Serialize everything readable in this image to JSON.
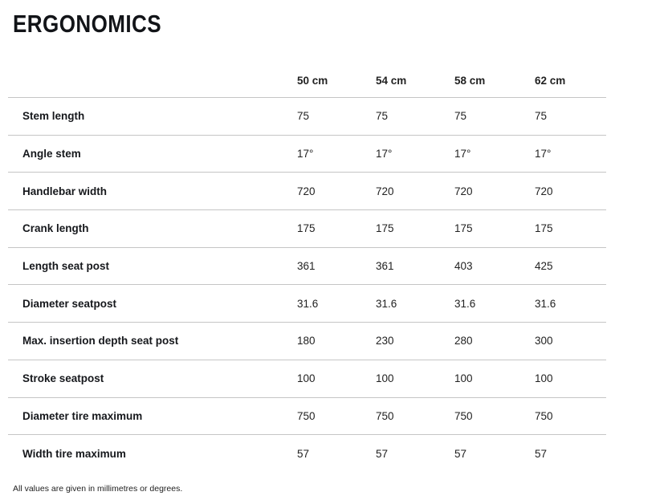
{
  "title": "ERGONOMICS",
  "table": {
    "columns": [
      "50 cm",
      "54 cm",
      "58 cm",
      "62 cm"
    ],
    "rows": [
      {
        "label": "Stem length",
        "values": [
          "75",
          "75",
          "75",
          "75"
        ]
      },
      {
        "label": "Angle stem",
        "values": [
          "17°",
          "17°",
          "17°",
          "17°"
        ]
      },
      {
        "label": "Handlebar width",
        "values": [
          "720",
          "720",
          "720",
          "720"
        ]
      },
      {
        "label": "Crank length",
        "values": [
          "175",
          "175",
          "175",
          "175"
        ]
      },
      {
        "label": "Length seat post",
        "values": [
          "361",
          "361",
          "403",
          "425"
        ]
      },
      {
        "label": "Diameter seatpost",
        "values": [
          "31.6",
          "31.6",
          "31.6",
          "31.6"
        ]
      },
      {
        "label": "Max. insertion depth seat post",
        "values": [
          "180",
          "230",
          "280",
          "300"
        ]
      },
      {
        "label": "Stroke seatpost",
        "values": [
          "100",
          "100",
          "100",
          "100"
        ]
      },
      {
        "label": "Diameter tire maximum",
        "values": [
          "750",
          "750",
          "750",
          "750"
        ]
      },
      {
        "label": "Width tire maximum",
        "values": [
          "57",
          "57",
          "57",
          "57"
        ]
      }
    ]
  },
  "footnote": "All values are given in millimetres or degrees.",
  "colors": {
    "text": "#1a1a1a",
    "divider": "#c5c5c5",
    "background": "#ffffff"
  }
}
